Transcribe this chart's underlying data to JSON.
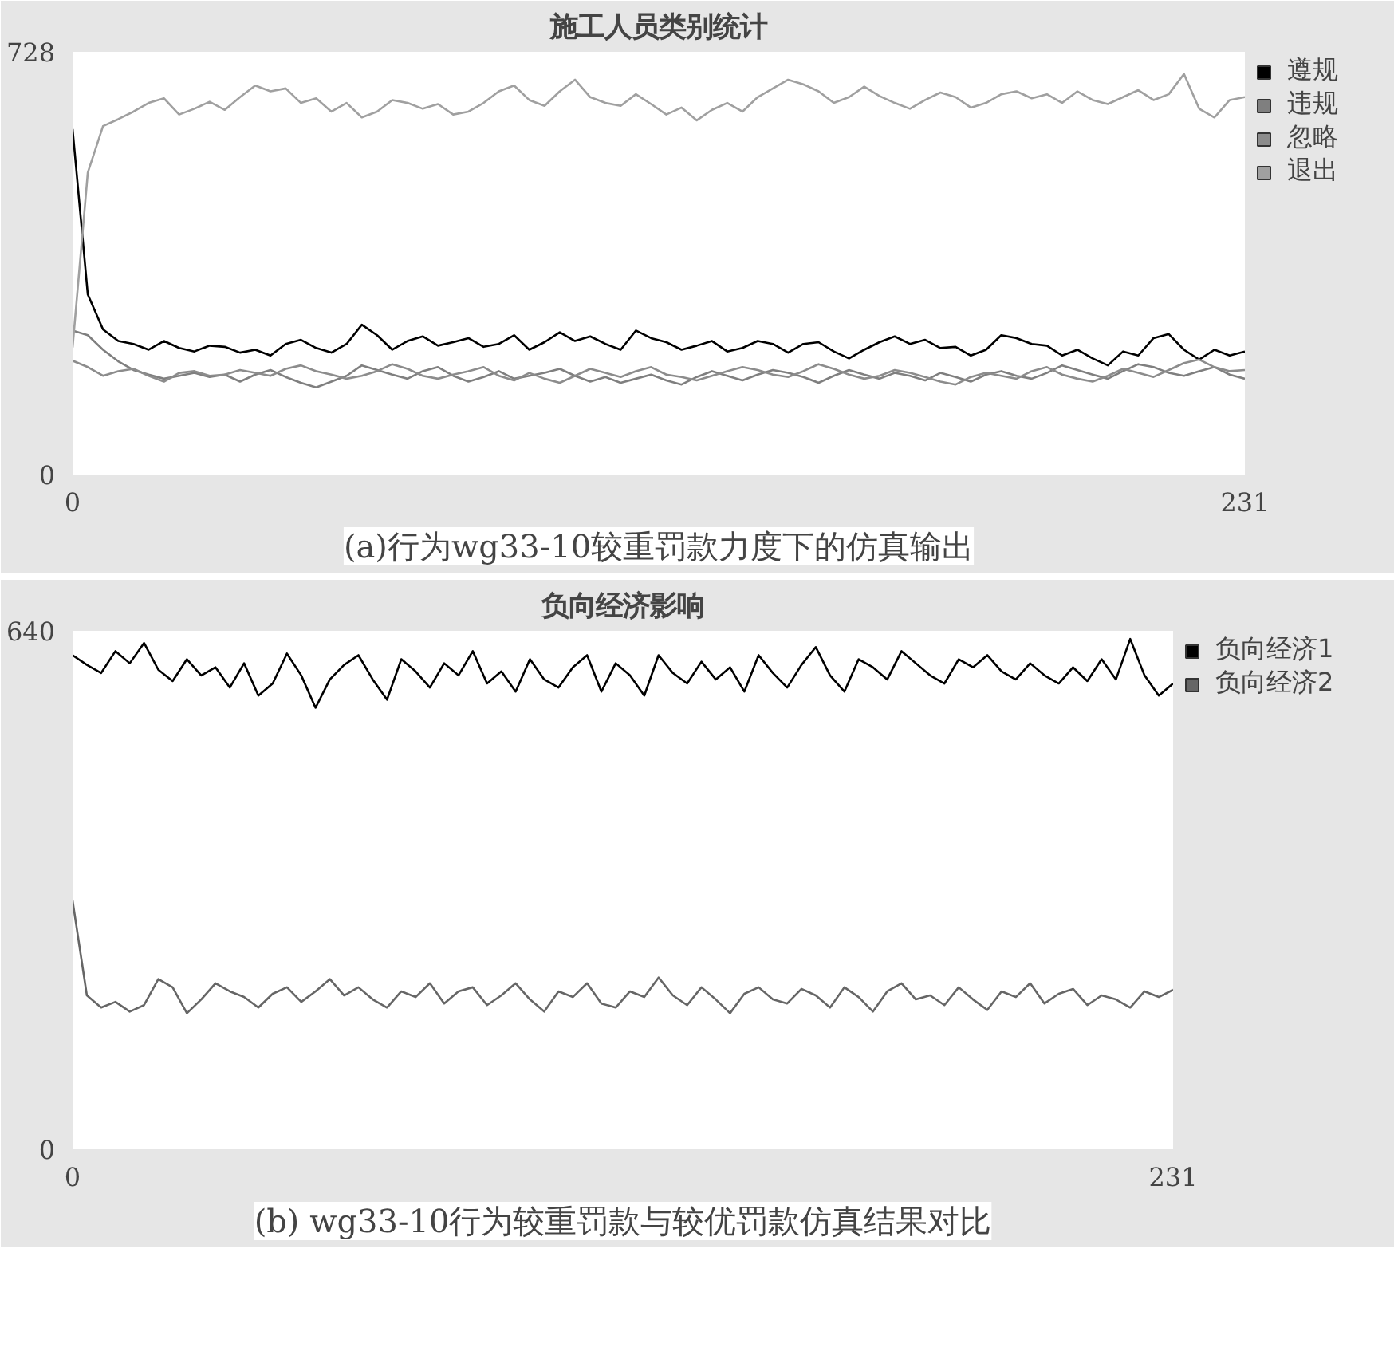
{
  "chart_data": [
    {
      "type": "line",
      "title": "施工人员类别统计",
      "annotations": [
        "(a)行为wg33-10较重罚款力度下的仿真输出"
      ],
      "xlim": [
        0,
        231
      ],
      "ylim": [
        0,
        728
      ],
      "xticks": [
        0,
        231
      ],
      "yticks": [
        0,
        728
      ],
      "legend": "top right",
      "marker": "none",
      "line_style": "solid",
      "x": [
        0,
        3,
        6,
        9,
        12,
        15,
        18,
        21,
        24,
        27,
        30,
        33,
        36,
        39,
        42,
        45,
        48,
        51,
        54,
        57,
        60,
        63,
        66,
        69,
        72,
        75,
        78,
        81,
        84,
        87,
        90,
        93,
        96,
        99,
        102,
        105,
        108,
        111,
        114,
        117,
        120,
        123,
        126,
        129,
        132,
        135,
        138,
        141,
        144,
        147,
        150,
        153,
        156,
        159,
        162,
        165,
        168,
        171,
        174,
        177,
        180,
        183,
        186,
        189,
        192,
        195,
        198,
        201,
        204,
        207,
        210,
        213,
        216,
        219,
        222,
        225,
        228,
        231
      ],
      "series": [
        {
          "name": "遵规",
          "color": "#000000",
          "values": [
            595,
            310,
            250,
            230,
            225,
            215,
            230,
            218,
            212,
            222,
            220,
            210,
            215,
            205,
            225,
            232,
            218,
            210,
            225,
            258,
            240,
            215,
            230,
            238,
            222,
            228,
            235,
            220,
            225,
            240,
            215,
            228,
            245,
            230,
            238,
            225,
            215,
            248,
            235,
            228,
            215,
            222,
            230,
            212,
            218,
            230,
            225,
            210,
            225,
            228,
            212,
            200,
            215,
            228,
            238,
            225,
            232,
            218,
            220,
            205,
            215,
            240,
            235,
            225,
            222,
            205,
            215,
            200,
            188,
            212,
            205,
            235,
            242,
            215,
            198,
            215,
            205,
            212
          ]
        },
        {
          "name": "违规",
          "color": "#7f7f7f",
          "values": [
            248,
            240,
            215,
            195,
            180,
            172,
            165,
            170,
            175,
            168,
            172,
            160,
            172,
            180,
            168,
            158,
            150,
            160,
            170,
            188,
            180,
            172,
            165,
            178,
            185,
            170,
            160,
            168,
            178,
            165,
            170,
            175,
            182,
            170,
            160,
            168,
            158,
            165,
            172,
            162,
            155,
            168,
            178,
            170,
            162,
            172,
            180,
            175,
            168,
            158,
            170,
            180,
            172,
            165,
            175,
            170,
            162,
            175,
            168,
            160,
            172,
            178,
            170,
            165,
            175,
            188,
            180,
            172,
            165,
            178,
            190,
            185,
            175,
            170,
            178,
            185,
            172,
            165
          ]
        },
        {
          "name": "忽略",
          "color": "#8c8c8c",
          "values": [
            196,
            185,
            170,
            178,
            182,
            170,
            160,
            175,
            178,
            170,
            172,
            180,
            175,
            170,
            182,
            188,
            178,
            172,
            165,
            170,
            178,
            190,
            182,
            170,
            165,
            172,
            178,
            185,
            170,
            162,
            175,
            165,
            158,
            170,
            182,
            175,
            168,
            178,
            185,
            172,
            168,
            162,
            170,
            178,
            185,
            180,
            172,
            168,
            178,
            190,
            182,
            172,
            165,
            170,
            180,
            175,
            168,
            160,
            155,
            168,
            175,
            170,
            165,
            178,
            185,
            172,
            165,
            160,
            170,
            182,
            175,
            168,
            180,
            192,
            198,
            185,
            178,
            180
          ]
        },
        {
          "name": "退出",
          "color": "#a0a0a0",
          "values": [
            219,
            520,
            600,
            612,
            625,
            640,
            648,
            620,
            630,
            642,
            628,
            650,
            670,
            660,
            665,
            640,
            648,
            625,
            640,
            615,
            625,
            645,
            640,
            630,
            638,
            620,
            625,
            640,
            660,
            670,
            645,
            635,
            660,
            680,
            650,
            640,
            635,
            655,
            638,
            620,
            632,
            610,
            628,
            640,
            625,
            650,
            665,
            680,
            672,
            660,
            640,
            650,
            668,
            652,
            640,
            630,
            645,
            658,
            650,
            632,
            640,
            655,
            660,
            648,
            655,
            640,
            660,
            645,
            638,
            650,
            662,
            645,
            655,
            690,
            630,
            615,
            645,
            650
          ]
        }
      ]
    },
    {
      "type": "line",
      "title": "负向经济影响",
      "annotations": [
        "(b) wg33-10行为较重罚款与较优罚款仿真结果对比"
      ],
      "xlim": [
        0,
        231
      ],
      "ylim": [
        0,
        640
      ],
      "xticks": [
        0,
        231
      ],
      "yticks": [
        0,
        640
      ],
      "legend": "top right",
      "marker": "none",
      "line_style": "solid",
      "x": [
        0,
        3,
        6,
        9,
        12,
        15,
        18,
        21,
        24,
        27,
        30,
        33,
        36,
        39,
        42,
        45,
        48,
        51,
        54,
        57,
        60,
        63,
        66,
        69,
        72,
        75,
        78,
        81,
        84,
        87,
        90,
        93,
        96,
        99,
        102,
        105,
        108,
        111,
        114,
        117,
        120,
        123,
        126,
        129,
        132,
        135,
        138,
        141,
        144,
        147,
        150,
        153,
        156,
        159,
        162,
        165,
        168,
        171,
        174,
        177,
        180,
        183,
        186,
        189,
        192,
        195,
        198,
        201,
        204,
        207,
        210,
        213,
        216,
        219,
        222,
        225,
        228,
        231
      ],
      "series": [
        {
          "name": "负向经济1",
          "color": "#000000",
          "values": [
            610,
            598,
            588,
            615,
            600,
            625,
            592,
            578,
            605,
            585,
            595,
            570,
            600,
            560,
            575,
            612,
            585,
            545,
            580,
            598,
            610,
            580,
            555,
            605,
            590,
            570,
            600,
            585,
            615,
            575,
            590,
            565,
            605,
            580,
            570,
            595,
            610,
            565,
            600,
            585,
            560,
            610,
            588,
            575,
            602,
            580,
            595,
            565,
            610,
            588,
            570,
            598,
            620,
            585,
            565,
            605,
            595,
            580,
            615,
            600,
            585,
            575,
            605,
            595,
            610,
            590,
            580,
            600,
            585,
            575,
            595,
            578,
            605,
            580,
            630,
            585,
            560,
            575
          ]
        },
        {
          "name": "负向经济2",
          "color": "#666666",
          "values": [
            307,
            190,
            175,
            182,
            170,
            178,
            210,
            200,
            168,
            185,
            205,
            195,
            188,
            175,
            192,
            200,
            182,
            195,
            210,
            190,
            200,
            185,
            175,
            195,
            188,
            205,
            180,
            195,
            200,
            178,
            190,
            205,
            185,
            170,
            195,
            188,
            205,
            180,
            175,
            195,
            188,
            212,
            190,
            178,
            200,
            185,
            168,
            192,
            200,
            185,
            180,
            198,
            190,
            175,
            200,
            188,
            170,
            195,
            205,
            185,
            190,
            178,
            200,
            185,
            172,
            195,
            188,
            205,
            180,
            192,
            198,
            178,
            190,
            185,
            175,
            195,
            188,
            197
          ]
        }
      ]
    }
  ]
}
